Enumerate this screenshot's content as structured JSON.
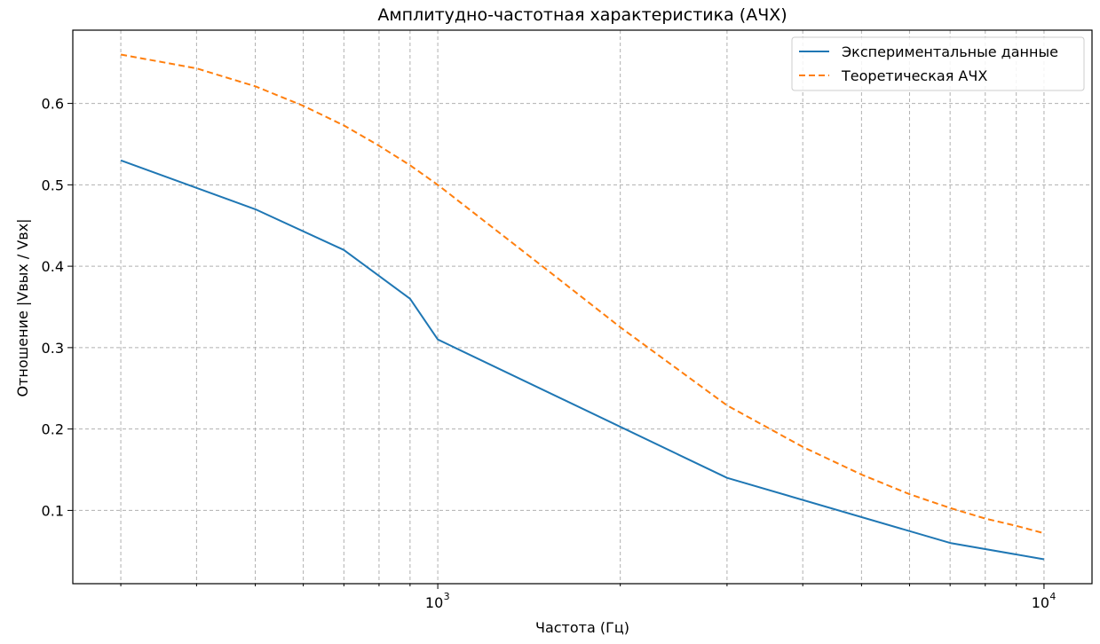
{
  "chart_data": {
    "type": "line",
    "title": "Амплитудно-частотная характеристика (АЧХ)",
    "xlabel": "Частота (Гц)",
    "ylabel": "Отношение |Vвых / Vвх|",
    "x_scale": "log",
    "xlim": [
      250,
      12000
    ],
    "ylim": [
      0.01,
      0.69
    ],
    "x_ticks_major": [
      {
        "value": 1000,
        "base": "10",
        "exp": "3"
      },
      {
        "value": 10000,
        "base": "10",
        "exp": "4"
      }
    ],
    "x_ticks_minor": [
      300,
      400,
      500,
      600,
      700,
      800,
      900,
      2000,
      3000,
      4000,
      5000,
      6000,
      7000,
      8000,
      9000,
      10000
    ],
    "y_ticks": [
      {
        "value": 0.1,
        "label": "0.1"
      },
      {
        "value": 0.2,
        "label": "0.2"
      },
      {
        "value": 0.3,
        "label": "0.3"
      },
      {
        "value": 0.4,
        "label": "0.4"
      },
      {
        "value": 0.5,
        "label": "0.5"
      },
      {
        "value": 0.6,
        "label": "0.6"
      }
    ],
    "grid": true,
    "legend_position": "top-right",
    "series": [
      {
        "name": "Экспериментальные данные",
        "color": "#1f77b4",
        "style": "solid",
        "x": [
          300,
          500,
          700,
          900,
          1000,
          3000,
          7000,
          10000
        ],
        "y": [
          0.53,
          0.47,
          0.42,
          0.36,
          0.31,
          0.14,
          0.06,
          0.04
        ]
      },
      {
        "name": "Теоретическая АЧХ",
        "color": "#ff7f0e",
        "style": "dashed",
        "x": [
          300,
          400,
          500,
          600,
          700,
          800,
          900,
          1000,
          1500,
          2000,
          3000,
          4000,
          5000,
          6000,
          7000,
          8000,
          9000,
          10000
        ],
        "y": [
          0.66,
          0.643,
          0.621,
          0.597,
          0.573,
          0.548,
          0.524,
          0.5,
          0.398,
          0.325,
          0.229,
          0.178,
          0.144,
          0.12,
          0.103,
          0.09,
          0.081,
          0.072
        ]
      }
    ]
  }
}
